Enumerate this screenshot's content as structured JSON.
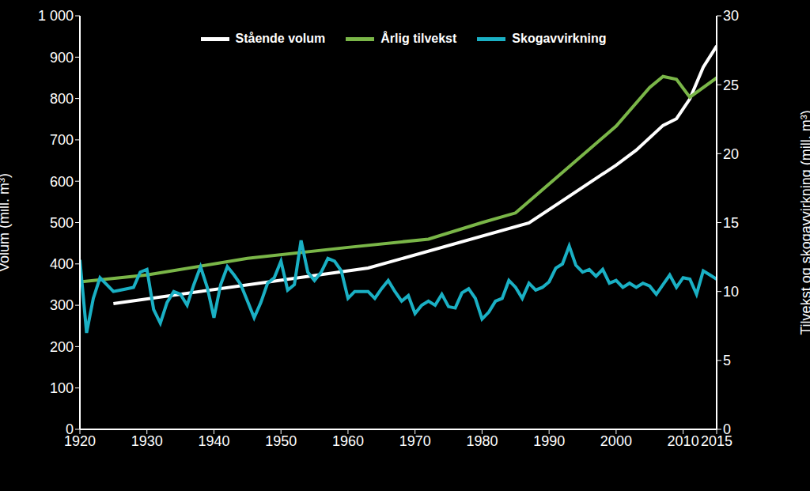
{
  "chart_data": {
    "type": "line",
    "xlabel": null,
    "ylabel": "Volum (mill. m³)",
    "y2label": "Tilvekst og skogavvirkning (mill. m³)",
    "xlim": [
      1920,
      2015
    ],
    "xticks": [
      1920,
      1930,
      1940,
      1950,
      1960,
      1970,
      1980,
      1990,
      2000,
      2010,
      2015
    ],
    "ylim": [
      0,
      1000
    ],
    "yticks": [
      0,
      100,
      200,
      300,
      400,
      500,
      600,
      700,
      800,
      900,
      {
        "value": 1000,
        "label": "1 000"
      }
    ],
    "y2lim": [
      0,
      30
    ],
    "y2ticks": [
      0,
      5,
      10,
      15,
      20,
      25,
      30
    ],
    "grid": false,
    "legend": "top",
    "series": [
      {
        "name": "Stående volum",
        "color": "#ffffff",
        "axis": "y",
        "x": [
          1925,
          1963,
          1987,
          2000,
          2003,
          2007,
          2009,
          2011,
          2013,
          2015
        ],
        "values": [
          304,
          390,
          499,
          639,
          675,
          735,
          751,
          799,
          876,
          927
        ]
      },
      {
        "name": "Årlig tilvekst",
        "color": "#7ab648",
        "axis": "y2",
        "x": [
          1920,
          1930,
          1945,
          1960,
          1972,
          1980,
          1985,
          2000,
          2005,
          2007,
          2009,
          2011,
          2015
        ],
        "values": [
          10.7,
          11.2,
          12.4,
          13.2,
          13.8,
          15.0,
          15.7,
          22.0,
          24.8,
          25.6,
          25.4,
          24.1,
          25.5
        ]
      },
      {
        "name": "Skogavvirkning",
        "color": "#1ab0c4",
        "axis": "y2",
        "x": [
          1920,
          1921,
          1922,
          1923,
          1924,
          1925,
          1926,
          1927,
          1928,
          1929,
          1930,
          1931,
          1932,
          1933,
          1934,
          1935,
          1936,
          1937,
          1938,
          1939,
          1940,
          1941,
          1942,
          1943,
          1944,
          1945,
          1946,
          1947,
          1948,
          1949,
          1950,
          1951,
          1952,
          1953,
          1954,
          1955,
          1956,
          1957,
          1958,
          1959,
          1960,
          1961,
          1962,
          1963,
          1964,
          1965,
          1966,
          1967,
          1968,
          1969,
          1970,
          1971,
          1972,
          1973,
          1974,
          1975,
          1976,
          1977,
          1978,
          1979,
          1980,
          1981,
          1982,
          1983,
          1984,
          1985,
          1986,
          1987,
          1988,
          1989,
          1990,
          1991,
          1992,
          1993,
          1994,
          1995,
          1996,
          1997,
          1998,
          1999,
          2000,
          2001,
          2002,
          2003,
          2004,
          2005,
          2006,
          2007,
          2008,
          2009,
          2010,
          2011,
          2012,
          2013,
          2014,
          2015
        ],
        "values": [
          12.3,
          7.0,
          9.5,
          11.0,
          10.5,
          10.0,
          10.1,
          10.2,
          10.3,
          11.4,
          11.6,
          8.7,
          7.7,
          9.2,
          10.0,
          9.8,
          9.0,
          10.5,
          11.8,
          10.3,
          8.1,
          10.5,
          11.8,
          11.2,
          10.5,
          9.3,
          8.1,
          9.2,
          10.6,
          11.0,
          12.2,
          10.1,
          10.5,
          13.7,
          11.4,
          10.8,
          11.4,
          12.4,
          12.2,
          11.5,
          9.5,
          10.0,
          10.0,
          10.0,
          9.5,
          10.2,
          10.8,
          10.0,
          9.3,
          9.7,
          8.4,
          9.0,
          9.3,
          9.0,
          9.8,
          8.9,
          8.8,
          9.9,
          10.2,
          9.5,
          8.0,
          8.5,
          9.3,
          9.5,
          10.8,
          10.3,
          9.5,
          10.6,
          10.1,
          10.3,
          10.7,
          11.7,
          12.0,
          13.3,
          11.9,
          11.4,
          11.6,
          11.1,
          11.6,
          10.6,
          10.8,
          10.3,
          10.6,
          10.3,
          10.6,
          10.4,
          9.8,
          10.5,
          11.2,
          10.3,
          11.0,
          10.9,
          9.8,
          11.5,
          11.2,
          10.9
        ]
      }
    ]
  }
}
